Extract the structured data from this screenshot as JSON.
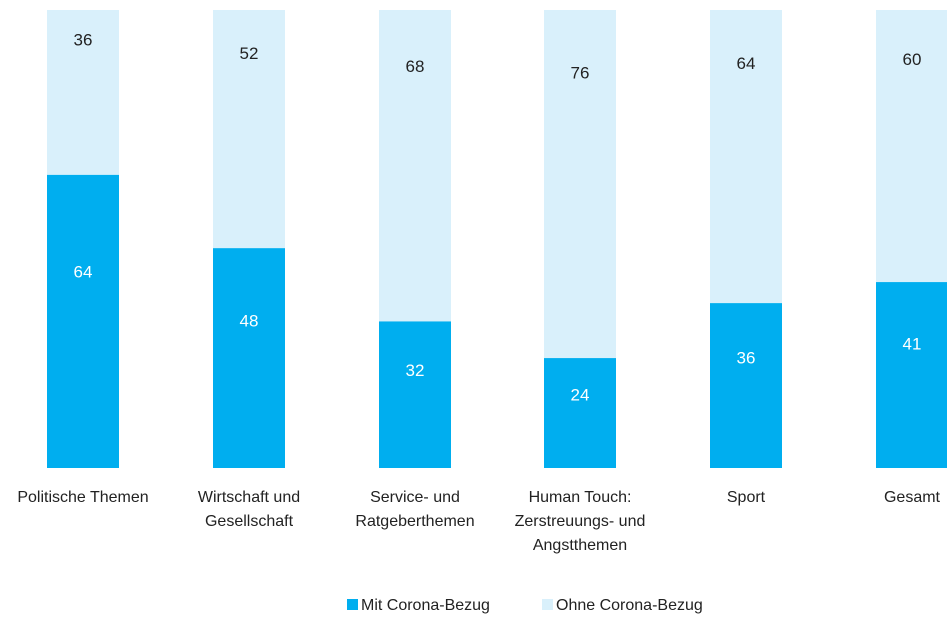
{
  "chart_data": {
    "type": "bar",
    "stacked": true,
    "orientation": "vertical",
    "unit": "percent",
    "categories": [
      [
        "Politische Themen"
      ],
      [
        "Wirtschaft und",
        "Gesellschaft"
      ],
      [
        "Service- und",
        "Ratgeberthemen"
      ],
      [
        "Human Touch:",
        "Zerstreuungs- und",
        "Angstthemen"
      ],
      [
        "Sport"
      ],
      [
        "Gesamt"
      ]
    ],
    "series": [
      {
        "name": "Mit Corona-Bezug",
        "color": "#00aeef",
        "label_color": "#ffffff",
        "values": [
          64,
          48,
          32,
          24,
          36,
          41
        ]
      },
      {
        "name": "Ohne Corona-Bezug",
        "color": "#d9f0fb",
        "label_color": "#222222",
        "values": [
          36,
          52,
          68,
          76,
          64,
          60
        ]
      }
    ],
    "ylim": [
      0,
      100
    ],
    "grid": false,
    "legend_position": "bottom-center"
  }
}
